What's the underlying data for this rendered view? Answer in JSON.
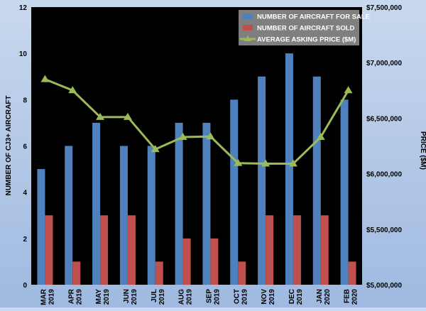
{
  "chart_data": {
    "type": "bar",
    "categories": [
      [
        "MAR",
        "2019"
      ],
      [
        "APR",
        "2019"
      ],
      [
        "MAY",
        "2019"
      ],
      [
        "JUN",
        "2019"
      ],
      [
        "JUL",
        "2019"
      ],
      [
        "AUG",
        "2019"
      ],
      [
        "SEP",
        "2019"
      ],
      [
        "OCT",
        "2019"
      ],
      [
        "NOV",
        "2019"
      ],
      [
        "DEC",
        "2019"
      ],
      [
        "JAN",
        "2020"
      ],
      [
        "FEB",
        "2020"
      ]
    ],
    "series": [
      {
        "name": "NUMBER OF AIRCRAFT FOR SALE",
        "type": "bar",
        "axis": "left",
        "color": "#4f81bd",
        "values": [
          5,
          6,
          7,
          6,
          6,
          7,
          7,
          8,
          9,
          10,
          9,
          8
        ]
      },
      {
        "name": "NUMBER OF AIRCRAFT SOLD",
        "type": "bar",
        "axis": "left",
        "color": "#c0504d",
        "values": [
          3,
          1,
          3,
          3,
          1,
          2,
          2,
          1,
          3,
          3,
          3,
          1
        ]
      },
      {
        "name": "AVERAGE ASKING PRICE ($M)",
        "type": "line",
        "axis": "right",
        "color": "#9bbb59",
        "values": [
          6850000,
          6750000,
          6510000,
          6510000,
          6220000,
          6330000,
          6335000,
          6095000,
          6090000,
          6090000,
          6330000,
          6750000
        ]
      }
    ],
    "ylabel": "NUMBER OF CJ3+ AIRCRAFT",
    "y2label": "PRICE ($M)",
    "ylim": [
      0,
      12
    ],
    "y2lim": [
      5000000,
      7500000
    ],
    "yticks": [
      "0",
      "2",
      "4",
      "6",
      "8",
      "10",
      "12"
    ],
    "y2ticks": [
      "$5,000,000",
      "$5,500,000",
      "$6,000,000",
      "$6,500,000",
      "$7,000,000",
      "$7,500,000"
    ],
    "legend_position": "top-right",
    "plot_background": "#000000",
    "grid": false
  }
}
